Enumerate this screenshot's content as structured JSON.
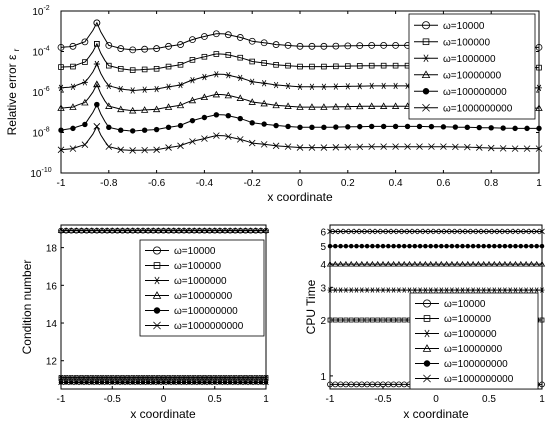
{
  "chart_data": [
    {
      "type": "line",
      "xlabel": "x coordinate",
      "ylabel_main": "Relative error",
      "ylabel_symbol": "ε",
      "ylabel_sub": "r",
      "yscale": "log",
      "xlim": [
        -1,
        1
      ],
      "ylim": [
        1e-10,
        0.01
      ],
      "x_ticks": [
        "-1",
        "-0.8",
        "-0.6",
        "-0.4",
        "-0.2",
        "0",
        "0.2",
        "0.4",
        "0.6",
        "0.8",
        "1"
      ],
      "y_ticks": [
        {
          "base": "10",
          "exp": "-2"
        },
        {
          "base": "10",
          "exp": "-4"
        },
        {
          "base": "10",
          "exp": "-6"
        },
        {
          "base": "10",
          "exp": "-8"
        },
        {
          "base": "10",
          "exp": "-10"
        }
      ],
      "legend_position": "top-right",
      "x": [
        -1,
        -0.95,
        -0.9,
        -0.87,
        -0.85,
        -0.83,
        -0.8,
        -0.75,
        -0.7,
        -0.6,
        -0.5,
        -0.4,
        -0.35,
        -0.32,
        -0.28,
        -0.2,
        -0.1,
        0,
        0.1,
        0.2,
        0.3,
        0.4,
        0.5,
        0.6,
        0.7,
        0.8,
        0.9,
        1
      ],
      "series": [
        {
          "name": "ω=10000",
          "marker": "circle",
          "values": [
            0.00016,
            0.00018,
            0.0003,
            0.0008,
            0.0026,
            0.0006,
            0.0002,
            0.00014,
            0.00012,
            0.00014,
            0.00022,
            0.00055,
            0.00075,
            0.00075,
            0.0006,
            0.00032,
            0.00022,
            0.00018,
            0.00018,
            0.00019,
            0.0002,
            0.0002,
            0.0002,
            0.0002,
            0.00019,
            0.00017,
            0.00016,
            0.00016
          ]
        },
        {
          "name": "ω=100000",
          "marker": "square",
          "values": [
            1.7e-05,
            1.8e-05,
            3e-05,
            7e-05,
            0.00024,
            5e-05,
            2e-05,
            1.4e-05,
            1.2e-05,
            1.4e-05,
            2.2e-05,
            5.5e-05,
            7.5e-05,
            7.5e-05,
            6e-05,
            3.2e-05,
            2.2e-05,
            1.8e-05,
            1.8e-05,
            1.9e-05,
            2e-05,
            2e-05,
            2e-05,
            2e-05,
            1.9e-05,
            1.7e-05,
            1.6e-05,
            1.6e-05
          ]
        },
        {
          "name": "ω=1000000",
          "marker": "asterisk",
          "values": [
            1.6e-06,
            1.8e-06,
            3e-06,
            7e-06,
            2.4e-05,
            5e-06,
            2e-06,
            1.4e-06,
            1.2e-06,
            1.4e-06,
            2.2e-06,
            5.5e-06,
            7.5e-06,
            7.5e-06,
            6e-06,
            3.2e-06,
            2.2e-06,
            1.8e-06,
            1.8e-06,
            1.9e-06,
            2e-06,
            2e-06,
            2e-06,
            2e-06,
            1.9e-06,
            1.7e-06,
            1.6e-06,
            1.6e-06
          ]
        },
        {
          "name": "ω=10000000",
          "marker": "triangle",
          "values": [
            1.6e-07,
            1.8e-07,
            3e-07,
            7e-07,
            2.4e-06,
            5e-07,
            2e-07,
            1.4e-07,
            1.2e-07,
            1.4e-07,
            2.2e-07,
            5.5e-07,
            7.5e-07,
            7.5e-07,
            6e-07,
            3.2e-07,
            2.2e-07,
            1.8e-07,
            1.8e-07,
            1.9e-07,
            2e-07,
            2e-07,
            2e-07,
            2e-07,
            1.9e-07,
            1.7e-07,
            1.6e-07,
            1.6e-07
          ]
        },
        {
          "name": "ω=100000000",
          "marker": "filled-circle",
          "values": [
            1.3e-08,
            1.6e-08,
            2.5e-08,
            7e-08,
            2.4e-07,
            5e-08,
            1.8e-08,
            1.3e-08,
            1.2e-08,
            1.4e-08,
            2.2e-08,
            5.5e-08,
            7.5e-08,
            7.5e-08,
            6e-08,
            3e-08,
            2.2e-08,
            1.8e-08,
            1.8e-08,
            1.9e-08,
            2e-08,
            2e-08,
            2e-08,
            1.9e-08,
            1.8e-08,
            1.7e-08,
            1.6e-08,
            1.6e-08
          ]
        },
        {
          "name": "ω=1000000000",
          "marker": "x",
          "values": [
            1.4e-09,
            1.6e-09,
            2.5e-09,
            6e-09,
            2e-08,
            5e-09,
            2e-09,
            1.4e-09,
            1.3e-09,
            1.4e-09,
            2.2e-09,
            5e-09,
            7e-09,
            7e-09,
            5.5e-09,
            3e-09,
            2.2e-09,
            1.8e-09,
            1.8e-09,
            1.9e-09,
            2e-09,
            2e-09,
            2e-09,
            2e-09,
            1.9e-09,
            1.7e-09,
            1.6e-09,
            1.6e-09
          ]
        }
      ]
    },
    {
      "type": "line",
      "xlabel": "x coordinate",
      "ylabel": "Condition number",
      "xlim": [
        -1,
        1
      ],
      "ylim": [
        10.5,
        19.2
      ],
      "x_ticks": [
        "-1",
        "-0.5",
        "0",
        "0.5",
        "1"
      ],
      "y_ticks": [
        "12",
        "14",
        "16",
        "18"
      ],
      "legend_position": "top-center",
      "series": [
        {
          "name": "ω=10000",
          "marker": "circle",
          "value": 18.9
        },
        {
          "name": "ω=100000",
          "marker": "square",
          "value": 11.1
        },
        {
          "name": "ω=1000000",
          "marker": "asterisk",
          "value": 11.1
        },
        {
          "name": "ω=10000000",
          "marker": "triangle",
          "value": 18.9
        },
        {
          "name": "ω=100000000",
          "marker": "filled-circle",
          "value": 10.85
        },
        {
          "name": "ω=1000000000",
          "marker": "x",
          "value": 10.85
        }
      ]
    },
    {
      "type": "line",
      "xlabel": "x coordinate",
      "ylabel": "CPU Time",
      "yscale": "log",
      "xlim": [
        -1,
        1
      ],
      "ylim": [
        0.85,
        6.5
      ],
      "x_ticks": [
        "-1",
        "-0.5",
        "0",
        "0.5",
        "1"
      ],
      "y_ticks": [
        "1",
        "2",
        "3",
        "4",
        "5",
        "6"
      ],
      "legend_position": "bottom-right",
      "series": [
        {
          "name": "ω=10000",
          "marker": "circle",
          "value": 0.9
        },
        {
          "name": "ω=100000",
          "marker": "square",
          "value": 2.0
        },
        {
          "name": "ω=1000000",
          "marker": "asterisk",
          "value": 2.9
        },
        {
          "name": "ω=10000000",
          "marker": "triangle",
          "value": 4.0
        },
        {
          "name": "ω=100000000",
          "marker": "filled-circle",
          "value": 5.0
        },
        {
          "name": "ω=1000000000",
          "marker": "x",
          "value": 6.0
        }
      ]
    }
  ]
}
